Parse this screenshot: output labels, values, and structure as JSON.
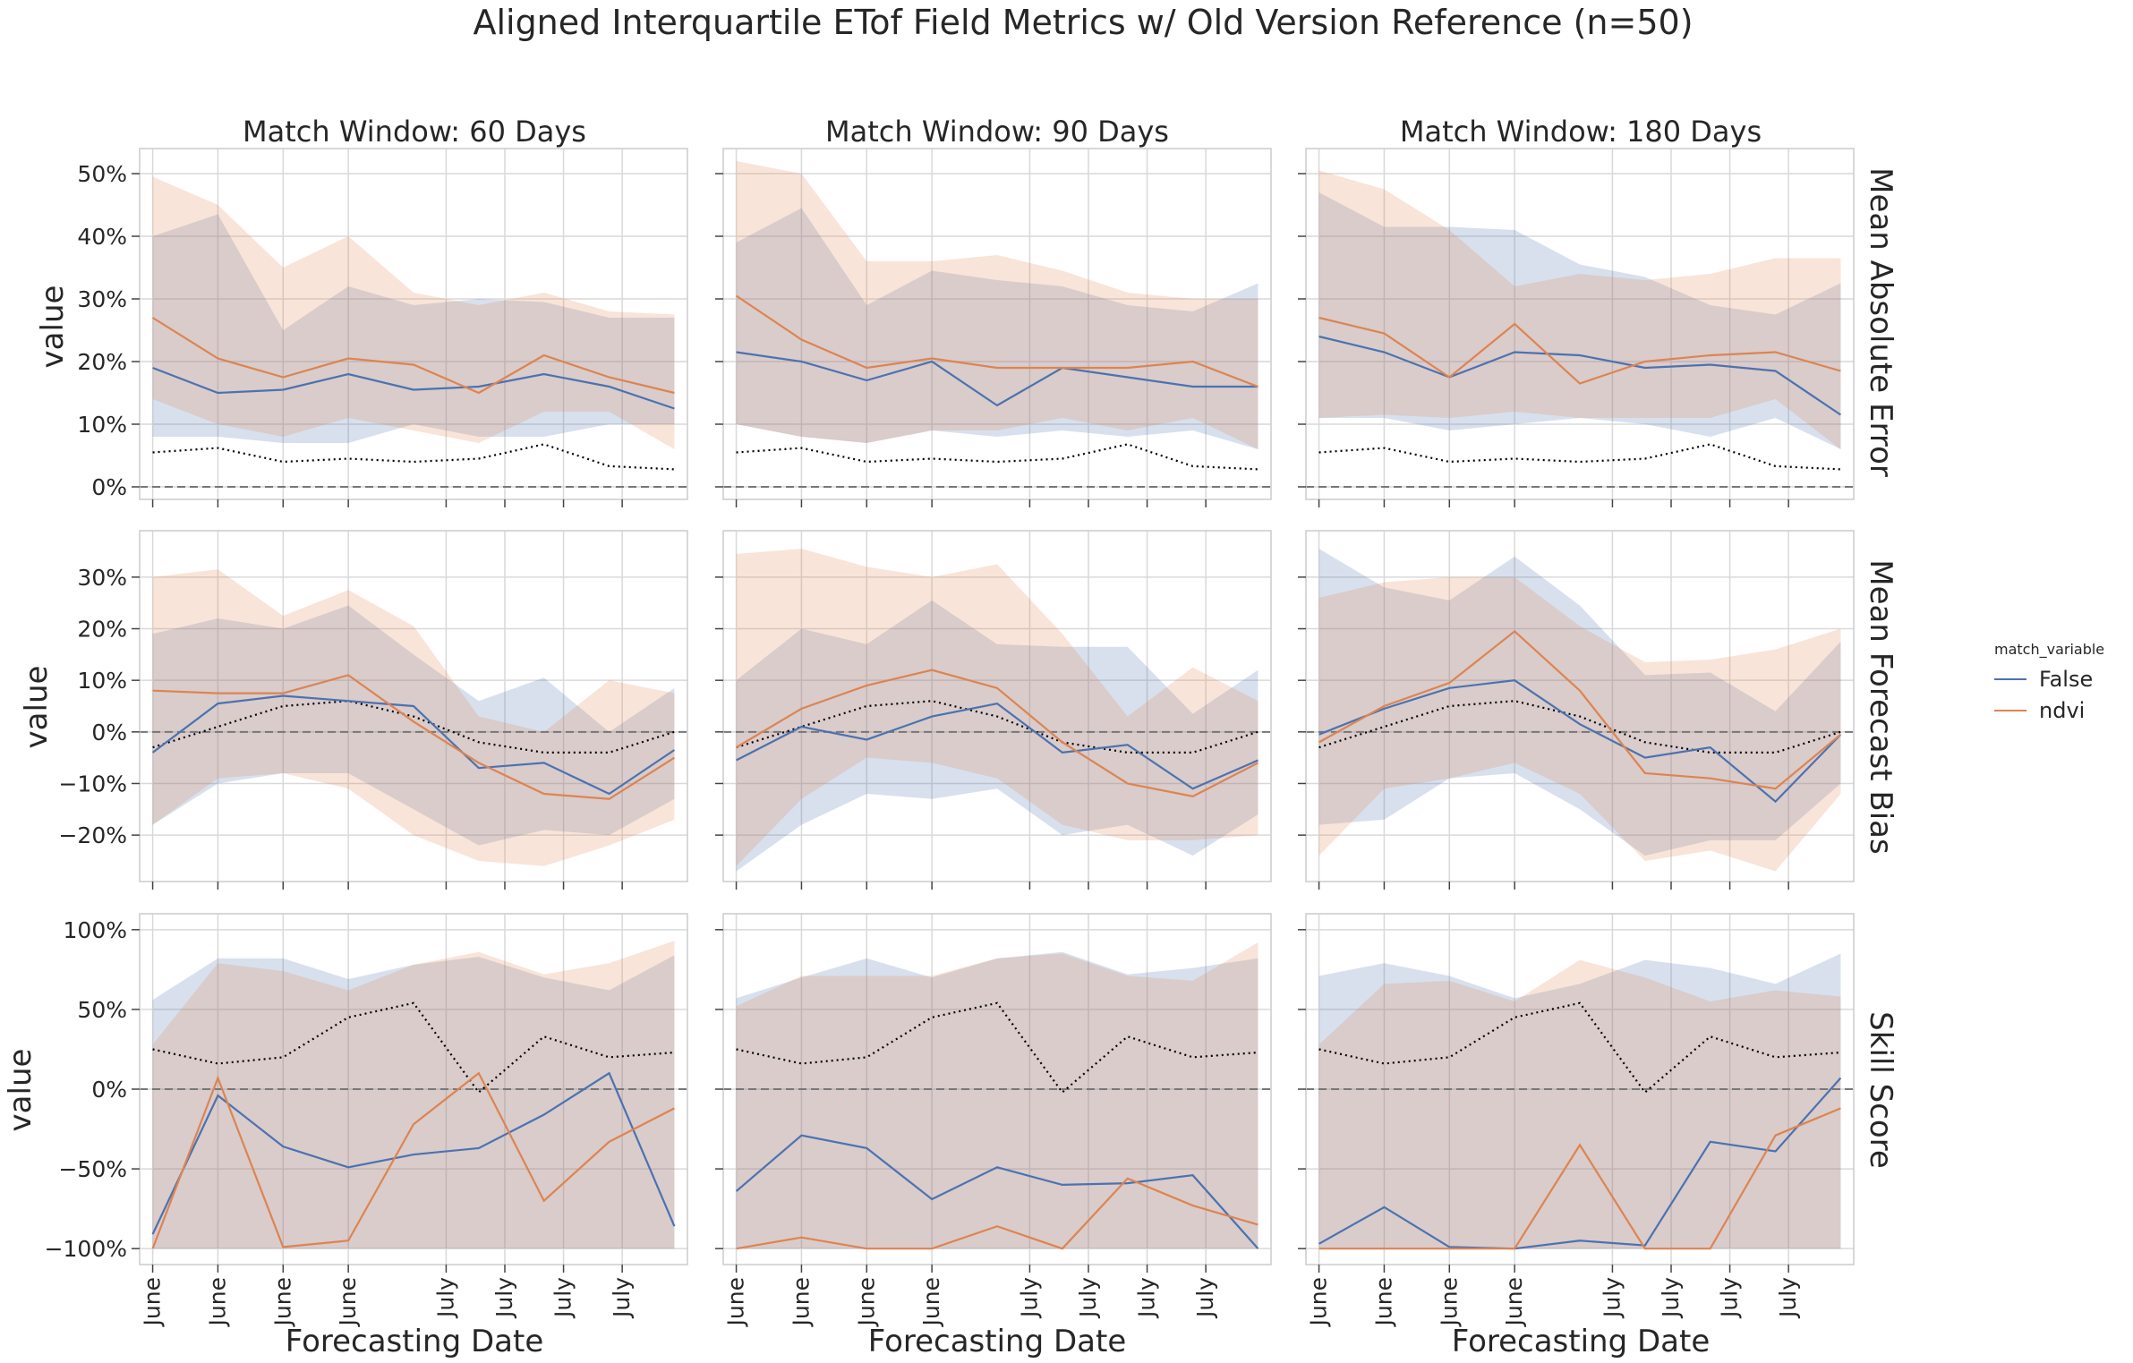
{
  "title": "Aligned Interquartile ETof Field Metrics w/ Old Version Reference (n=50)",
  "col_titles": [
    "Match Window: 60 Days",
    "Match Window: 90 Days",
    "Match Window: 180 Days"
  ],
  "row_titles": [
    "Mean Absolute Error",
    "Mean Forecast Bias",
    "Skill Score"
  ],
  "ylabel": "value",
  "xlabel": "Forecasting Date",
  "x_tick_labels": [
    "June",
    "June",
    "June",
    "June",
    "July",
    "July",
    "July",
    "July"
  ],
  "legend": {
    "title": "match_variable",
    "entries": [
      {
        "label": "False",
        "color": "#4c72b0"
      },
      {
        "label": "ndvi",
        "color": "#dd8452"
      }
    ]
  },
  "colors": {
    "false": "#4c72b0",
    "ndvi": "#dd8452",
    "reference": "#000000",
    "zero_line": "#777777",
    "grid": "#d9d9d9"
  },
  "chart_data": {
    "type": "line",
    "x_positions": [
      0,
      1,
      2,
      3,
      4,
      5,
      6,
      7,
      8
    ],
    "x_tick_positions": [
      0,
      1,
      2,
      3,
      4,
      5,
      6,
      7
    ],
    "panels": [
      {
        "row": 0,
        "col": 0,
        "ylim": [
          -2,
          54
        ],
        "y_ticks": [
          0,
          10,
          20,
          30,
          40,
          50
        ],
        "y_tick_labels": [
          "0%",
          "10%",
          "20%",
          "30%",
          "40%",
          "50%"
        ],
        "reference": [
          5.5,
          6.2,
          4.0,
          4.5,
          4.0,
          4.5,
          6.8,
          3.3,
          2.8
        ],
        "series": [
          {
            "name": "False",
            "median": [
              19,
              15,
              15.5,
              18,
              15.5,
              16,
              18,
              16,
              12.5
            ],
            "q1": [
              8,
              8,
              7,
              7,
              10,
              8,
              8,
              10,
              10
            ],
            "q3": [
              40,
              43.5,
              25,
              32,
              29,
              30,
              29.5,
              27,
              27
            ]
          },
          {
            "name": "ndvi",
            "median": [
              27,
              20.5,
              17.5,
              20.5,
              19.5,
              15,
              21,
              17.5,
              15
            ],
            "q1": [
              14,
              10,
              8,
              11,
              9,
              7,
              12,
              12,
              6
            ],
            "q3": [
              49.5,
              45,
              35,
              40,
              31,
              29,
              31,
              28,
              27.5
            ]
          }
        ]
      },
      {
        "row": 0,
        "col": 1,
        "ylim": [
          -2,
          54
        ],
        "y_ticks": [
          0,
          10,
          20,
          30,
          40,
          50
        ],
        "y_tick_labels": [
          "0%",
          "10%",
          "20%",
          "30%",
          "40%",
          "50%"
        ],
        "reference": [
          5.5,
          6.2,
          4.0,
          4.5,
          4.0,
          4.5,
          6.8,
          3.3,
          2.8
        ],
        "series": [
          {
            "name": "False",
            "median": [
              21.5,
              20,
              17,
              20,
              13,
              19,
              17.5,
              16,
              16
            ],
            "q1": [
              10,
              8,
              7,
              9,
              8,
              9,
              8,
              9,
              6
            ],
            "q3": [
              39,
              44.5,
              29,
              34.5,
              33,
              32,
              29,
              28,
              32.5
            ]
          },
          {
            "name": "ndvi",
            "median": [
              30.5,
              23.5,
              19,
              20.5,
              19,
              19,
              19,
              20,
              16
            ],
            "q1": [
              10,
              8,
              7,
              9,
              9,
              11,
              9,
              11,
              6
            ],
            "q3": [
              52,
              50,
              36,
              36,
              37,
              34.5,
              31,
              30,
              30
            ]
          }
        ]
      },
      {
        "row": 0,
        "col": 2,
        "ylim": [
          -2,
          54
        ],
        "y_ticks": [
          0,
          10,
          20,
          30,
          40,
          50
        ],
        "y_tick_labels": [
          "0%",
          "10%",
          "20%",
          "30%",
          "40%",
          "50%"
        ],
        "reference": [
          5.5,
          6.2,
          4.0,
          4.5,
          4.0,
          4.5,
          6.8,
          3.3,
          2.8
        ],
        "series": [
          {
            "name": "False",
            "median": [
              24,
              21.5,
              17.5,
              21.5,
              21,
              19,
              19.5,
              18.5,
              11.5
            ],
            "q1": [
              11,
              11,
              9,
              10,
              11,
              10,
              8,
              11,
              6
            ],
            "q3": [
              47,
              41.5,
              41.5,
              41,
              35.5,
              33.5,
              29,
              27.5,
              32.5
            ]
          },
          {
            "name": "ndvi",
            "median": [
              27,
              24.5,
              17.5,
              26,
              16.5,
              20,
              21,
              21.5,
              18.5
            ],
            "q1": [
              11,
              11.5,
              11,
              12,
              11,
              11,
              11,
              14,
              6
            ],
            "q3": [
              50.5,
              47.5,
              41,
              32,
              34,
              33,
              34,
              36.5,
              36.5
            ]
          }
        ]
      },
      {
        "row": 1,
        "col": 0,
        "ylim": [
          -29,
          39
        ],
        "y_ticks": [
          -20,
          -10,
          0,
          10,
          20,
          30
        ],
        "y_tick_labels": [
          "−20%",
          "−10%",
          "0%",
          "10%",
          "20%",
          "30%"
        ],
        "reference": [
          -3,
          1,
          5,
          6,
          3,
          -2,
          -4,
          -4,
          0
        ],
        "series": [
          {
            "name": "False",
            "median": [
              -4,
              5.5,
              7,
              6,
              5,
              -7,
              -6,
              -12,
              -3.5
            ],
            "q1": [
              -18,
              -10,
              -8,
              -8,
              -15,
              -22,
              -19,
              -20,
              -13
            ],
            "q3": [
              19,
              22,
              20,
              24.5,
              15,
              6,
              10.5,
              0,
              8.5
            ]
          },
          {
            "name": "ndvi",
            "median": [
              8,
              7.5,
              7.5,
              11,
              2,
              -6,
              -12,
              -13,
              -5
            ],
            "q1": [
              -18,
              -9,
              -8,
              -11,
              -20,
              -25,
              -26,
              -22,
              -17
            ],
            "q3": [
              30,
              31.5,
              22.5,
              27.5,
              20.5,
              3,
              0,
              10,
              7.5
            ]
          }
        ]
      },
      {
        "row": 1,
        "col": 1,
        "ylim": [
          -29,
          39
        ],
        "y_ticks": [
          -20,
          -10,
          0,
          10,
          20,
          30
        ],
        "y_tick_labels": [
          "−20%",
          "−10%",
          "0%",
          "10%",
          "20%",
          "30%"
        ],
        "reference": [
          -3,
          1,
          5,
          6,
          3,
          -2,
          -4,
          -4,
          0
        ],
        "series": [
          {
            "name": "False",
            "median": [
              -5.5,
              1,
              -1.5,
              3,
              5.5,
              -4,
              -2.5,
              -11,
              -5.5
            ],
            "q1": [
              -27,
              -18,
              -12,
              -13,
              -11,
              -20,
              -18,
              -24,
              -16
            ],
            "q3": [
              10,
              20,
              17,
              25.5,
              17,
              16.5,
              16.5,
              3.5,
              12
            ]
          },
          {
            "name": "ndvi",
            "median": [
              -3,
              4.5,
              9,
              12,
              8.5,
              -2,
              -10,
              -12.5,
              -6
            ],
            "q1": [
              -26,
              -13,
              -5,
              -6,
              -9,
              -18,
              -21,
              -21,
              -20
            ],
            "q3": [
              34.5,
              35.5,
              32,
              30,
              32.5,
              19,
              3,
              12.5,
              6
            ]
          }
        ]
      },
      {
        "row": 1,
        "col": 2,
        "ylim": [
          -29,
          39
        ],
        "y_ticks": [
          -20,
          -10,
          0,
          10,
          20,
          30
        ],
        "y_tick_labels": [
          "−20%",
          "−10%",
          "0%",
          "10%",
          "20%",
          "30%"
        ],
        "reference": [
          -3,
          1,
          5,
          6,
          3,
          -2,
          -4,
          -4,
          0
        ],
        "series": [
          {
            "name": "False",
            "median": [
              -0.5,
              4.5,
              8.5,
              10,
              1.5,
              -5,
              -3,
              -13.5,
              -0.5
            ],
            "q1": [
              -18,
              -17,
              -9,
              -8,
              -15,
              -24,
              -21,
              -21,
              -10
            ],
            "q3": [
              35.5,
              28,
              25.5,
              34,
              24.5,
              11,
              11.5,
              4,
              17.5
            ]
          },
          {
            "name": "ndvi",
            "median": [
              -2,
              5,
              9.5,
              19.5,
              8,
              -8,
              -9,
              -11,
              -0.5
            ],
            "q1": [
              -24,
              -11,
              -9,
              -6,
              -12,
              -25,
              -23,
              -27,
              -12
            ],
            "q3": [
              26,
              29,
              30,
              30,
              20.5,
              13.5,
              14,
              16,
              20
            ]
          }
        ]
      },
      {
        "row": 2,
        "col": 0,
        "ylim": [
          -110,
          110
        ],
        "y_ticks": [
          -100,
          -50,
          0,
          50,
          100
        ],
        "y_tick_labels": [
          "−100%",
          "−50%",
          "0%",
          "50%",
          "100%"
        ],
        "reference": [
          25,
          16,
          20,
          45,
          54,
          -2,
          33,
          20,
          23
        ],
        "series": [
          {
            "name": "False",
            "median": [
              -91,
              -4,
              -36,
              -49,
              -41,
              -37,
              -16,
              10,
              -86
            ],
            "q1": [
              -100,
              -100,
              -100,
              -100,
              -100,
              -100,
              -100,
              -100,
              -100
            ],
            "q3": [
              56,
              82,
              82,
              69,
              78,
              83,
              70,
              62,
              84
            ]
          },
          {
            "name": "ndvi",
            "median": [
              -100,
              7,
              -99,
              -95,
              -22,
              10,
              -70,
              -33,
              -12
            ],
            "q1": [
              -100,
              -100,
              -100,
              -100,
              -100,
              -100,
              -100,
              -100,
              -100
            ],
            "q3": [
              28,
              79,
              74,
              62,
              78,
              86,
              72,
              79,
              93
            ]
          }
        ]
      },
      {
        "row": 2,
        "col": 1,
        "ylim": [
          -110,
          110
        ],
        "y_ticks": [
          -100,
          -50,
          0,
          50,
          100
        ],
        "y_tick_labels": [
          "−100%",
          "−50%",
          "0%",
          "50%",
          "100%"
        ],
        "reference": [
          25,
          16,
          20,
          45,
          54,
          -2,
          33,
          20,
          23
        ],
        "series": [
          {
            "name": "False",
            "median": [
              -64,
              -29,
              -37,
              -69,
              -49,
              -60,
              -59,
              -54,
              -100
            ],
            "q1": [
              -100,
              -100,
              -100,
              -100,
              -100,
              -100,
              -100,
              -100,
              -100
            ],
            "q3": [
              57,
              70,
              82,
              70,
              82,
              86,
              72,
              76,
              82
            ]
          },
          {
            "name": "ndvi",
            "median": [
              -100,
              -93,
              -100,
              -100,
              -86,
              -100,
              -56,
              -73,
              -85
            ],
            "q1": [
              -100,
              -100,
              -100,
              -100,
              -100,
              -100,
              -100,
              -100,
              -100
            ],
            "q3": [
              52,
              71,
              71,
              71,
              82,
              85,
              71,
              68,
              92
            ]
          }
        ]
      },
      {
        "row": 2,
        "col": 2,
        "ylim": [
          -110,
          110
        ],
        "y_ticks": [
          -100,
          -50,
          0,
          50,
          100
        ],
        "y_tick_labels": [
          "−100%",
          "−50%",
          "0%",
          "50%",
          "100%"
        ],
        "reference": [
          25,
          16,
          20,
          45,
          54,
          -2,
          33,
          20,
          23
        ],
        "series": [
          {
            "name": "False",
            "median": [
              -97,
              -74,
              -99,
              -100,
              -95,
              -98,
              -33,
              -39,
              7
            ],
            "q1": [
              -100,
              -100,
              -100,
              -100,
              -100,
              -100,
              -100,
              -100,
              -100
            ],
            "q3": [
              71,
              79,
              71,
              57,
              66,
              81,
              76,
              66,
              85
            ]
          },
          {
            "name": "ndvi",
            "median": [
              -100,
              -100,
              -100,
              -100,
              -35,
              -100,
              -100,
              -29,
              -12
            ],
            "q1": [
              -100,
              -100,
              -100,
              -100,
              -100,
              -100,
              -100,
              -100,
              -100
            ],
            "q3": [
              28,
              66,
              68,
              55,
              81,
              70,
              55,
              62,
              58
            ]
          }
        ]
      }
    ]
  }
}
